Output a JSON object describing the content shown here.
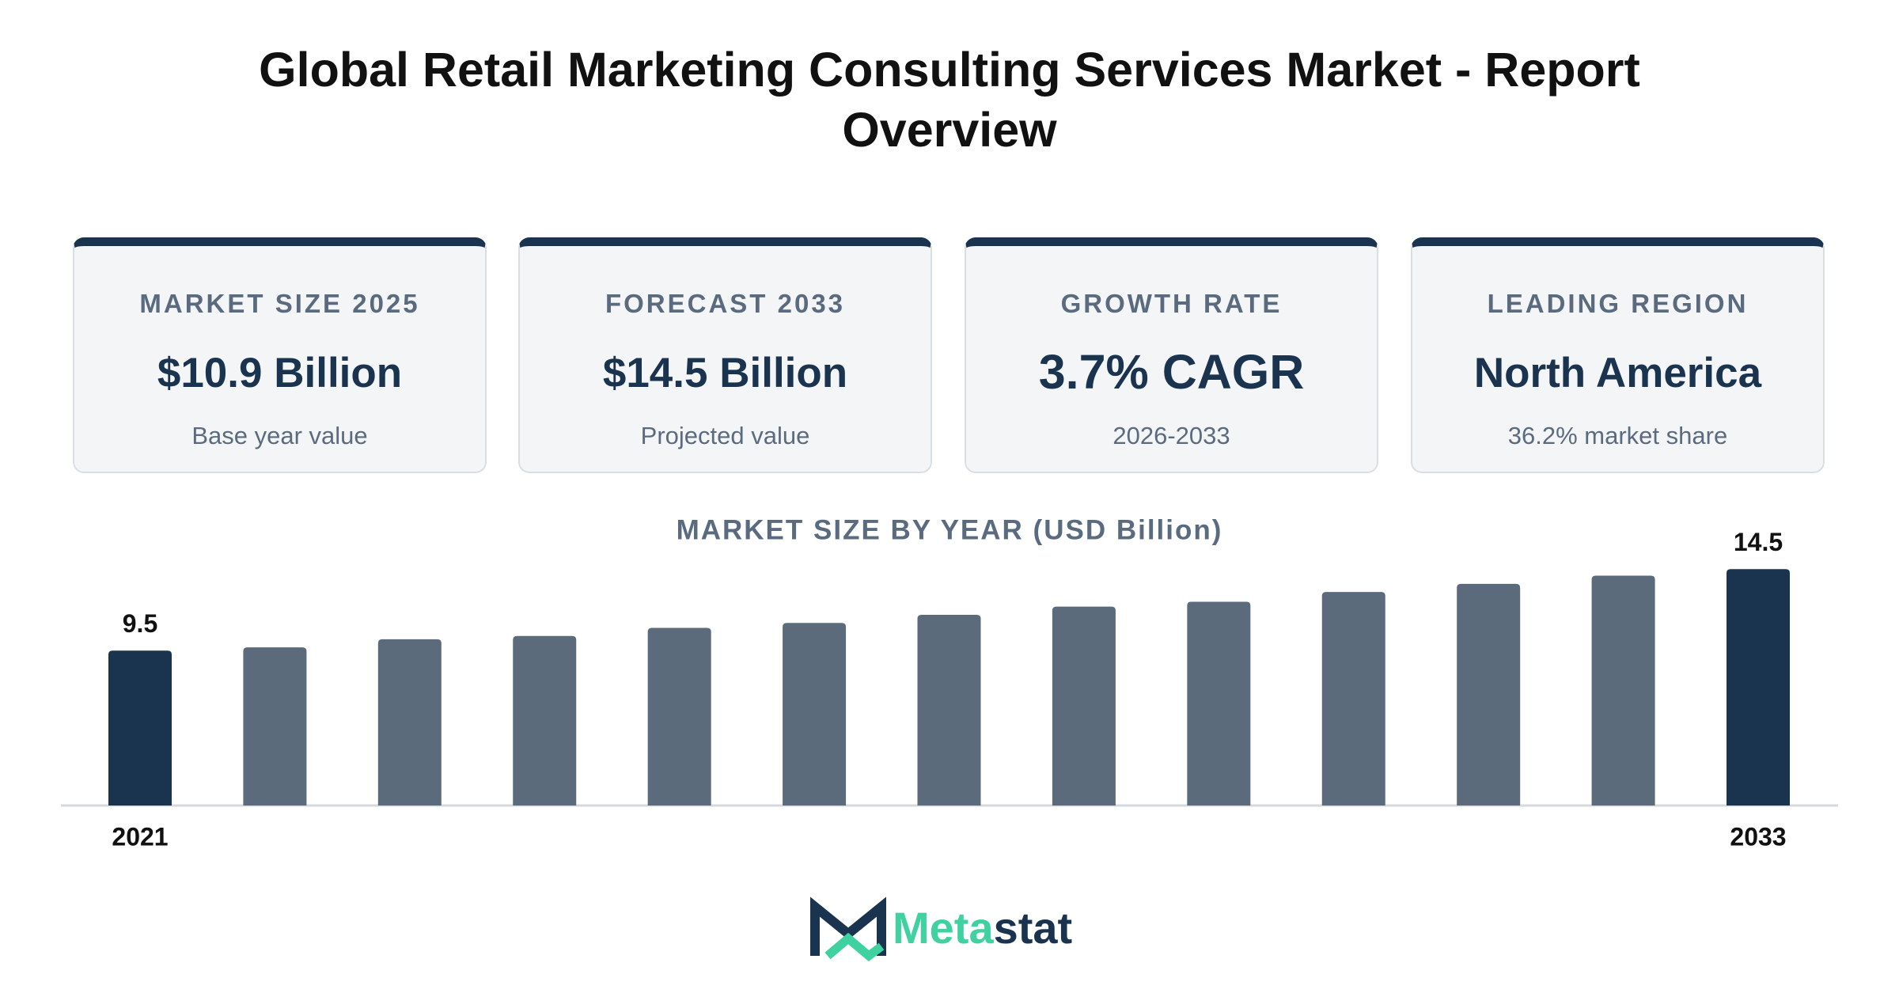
{
  "header": {
    "title": "Global Retail Marketing Consulting Services Market - Report Overview"
  },
  "cards": [
    {
      "label": "MARKET SIZE 2025",
      "value": "$10.9 Billion",
      "note": "Base year value"
    },
    {
      "label": "FORECAST 2033",
      "value": "$14.5 Billion",
      "note": "Projected value"
    },
    {
      "label": "GROWTH RATE",
      "value": "3.7% CAGR",
      "note": "2026-2033"
    },
    {
      "label": "LEADING REGION",
      "value": "North America",
      "note": "36.2% market share"
    }
  ],
  "chart_data": {
    "type": "bar",
    "title": "MARKET SIZE BY YEAR (USD Billion)",
    "categories": [
      "2021",
      null,
      null,
      null,
      null,
      null,
      null,
      null,
      null,
      null,
      null,
      null,
      "2033"
    ],
    "values": [
      9.5,
      9.7,
      10.2,
      10.4,
      10.9,
      11.2,
      11.7,
      12.2,
      12.5,
      13.1,
      13.6,
      14.1,
      14.5
    ],
    "value_labels": [
      "9.5",
      null,
      null,
      null,
      null,
      null,
      null,
      null,
      null,
      null,
      null,
      null,
      "14.5"
    ],
    "colors": [
      "#1a334f",
      "#5b6b7b",
      "#5b6b7b",
      "#5b6b7b",
      "#5b6b7b",
      "#5b6b7b",
      "#5b6b7b",
      "#5b6b7b",
      "#5b6b7b",
      "#5b6b7b",
      "#5b6b7b",
      "#5b6b7b",
      "#1a334f"
    ],
    "ylim": [
      0,
      15
    ],
    "grid": false
  },
  "brand": [
    "Meta",
    "stat"
  ]
}
